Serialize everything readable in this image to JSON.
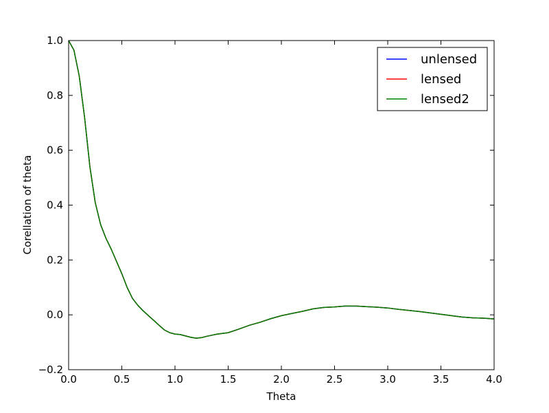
{
  "chart_data": {
    "type": "line",
    "title": "",
    "xlabel": "Theta",
    "ylabel": "Corellation of theta",
    "xlim": [
      0.0,
      4.0
    ],
    "ylim": [
      -0.2,
      1.0
    ],
    "xticks": [
      "0.0",
      "0.5",
      "1.0",
      "1.5",
      "2.0",
      "2.5",
      "3.0",
      "3.5",
      "4.0"
    ],
    "yticks": [
      "−0.2",
      "0.0",
      "0.2",
      "0.4",
      "0.6",
      "0.8",
      "1.0"
    ],
    "grid": false,
    "legend_position": "top-right",
    "x": [
      0.0,
      0.05,
      0.1,
      0.15,
      0.2,
      0.25,
      0.3,
      0.35,
      0.4,
      0.45,
      0.5,
      0.55,
      0.6,
      0.65,
      0.7,
      0.75,
      0.8,
      0.85,
      0.9,
      0.95,
      1.0,
      1.05,
      1.1,
      1.15,
      1.2,
      1.25,
      1.3,
      1.35,
      1.4,
      1.5,
      1.6,
      1.7,
      1.8,
      1.9,
      2.0,
      2.1,
      2.2,
      2.3,
      2.4,
      2.5,
      2.6,
      2.7,
      2.8,
      2.9,
      3.0,
      3.1,
      3.2,
      3.3,
      3.4,
      3.5,
      3.6,
      3.7,
      3.8,
      3.9,
      4.0
    ],
    "series": [
      {
        "name": "unlensed",
        "color": "#0000ff",
        "values": [
          1.0,
          0.965,
          0.87,
          0.72,
          0.54,
          0.41,
          0.33,
          0.28,
          0.24,
          0.195,
          0.15,
          0.1,
          0.06,
          0.035,
          0.015,
          -0.003,
          -0.02,
          -0.038,
          -0.055,
          -0.065,
          -0.07,
          -0.072,
          -0.077,
          -0.082,
          -0.085,
          -0.083,
          -0.078,
          -0.074,
          -0.07,
          -0.065,
          -0.052,
          -0.038,
          -0.027,
          -0.014,
          -0.003,
          0.005,
          0.013,
          0.022,
          0.027,
          0.029,
          0.032,
          0.032,
          0.03,
          0.028,
          0.025,
          0.02,
          0.016,
          0.012,
          0.007,
          0.002,
          -0.003,
          -0.008,
          -0.011,
          -0.012,
          -0.015
        ]
      },
      {
        "name": "lensed",
        "color": "#ff0000",
        "values": [
          1.0,
          0.965,
          0.87,
          0.72,
          0.54,
          0.41,
          0.33,
          0.28,
          0.24,
          0.195,
          0.15,
          0.1,
          0.06,
          0.035,
          0.015,
          -0.003,
          -0.02,
          -0.038,
          -0.055,
          -0.065,
          -0.07,
          -0.072,
          -0.077,
          -0.082,
          -0.085,
          -0.083,
          -0.078,
          -0.074,
          -0.07,
          -0.065,
          -0.052,
          -0.038,
          -0.027,
          -0.014,
          -0.003,
          0.005,
          0.013,
          0.022,
          0.027,
          0.029,
          0.032,
          0.032,
          0.03,
          0.028,
          0.025,
          0.02,
          0.016,
          0.012,
          0.007,
          0.002,
          -0.003,
          -0.008,
          -0.011,
          -0.012,
          -0.015
        ]
      },
      {
        "name": "lensed2",
        "color": "#008000",
        "values": [
          1.0,
          0.965,
          0.87,
          0.72,
          0.54,
          0.41,
          0.33,
          0.28,
          0.24,
          0.195,
          0.15,
          0.1,
          0.06,
          0.035,
          0.015,
          -0.003,
          -0.02,
          -0.038,
          -0.055,
          -0.065,
          -0.07,
          -0.072,
          -0.077,
          -0.082,
          -0.085,
          -0.083,
          -0.078,
          -0.074,
          -0.07,
          -0.065,
          -0.052,
          -0.038,
          -0.027,
          -0.014,
          -0.003,
          0.005,
          0.013,
          0.022,
          0.027,
          0.029,
          0.032,
          0.032,
          0.03,
          0.028,
          0.025,
          0.02,
          0.016,
          0.012,
          0.007,
          0.002,
          -0.003,
          -0.008,
          -0.011,
          -0.012,
          -0.015
        ]
      }
    ]
  }
}
